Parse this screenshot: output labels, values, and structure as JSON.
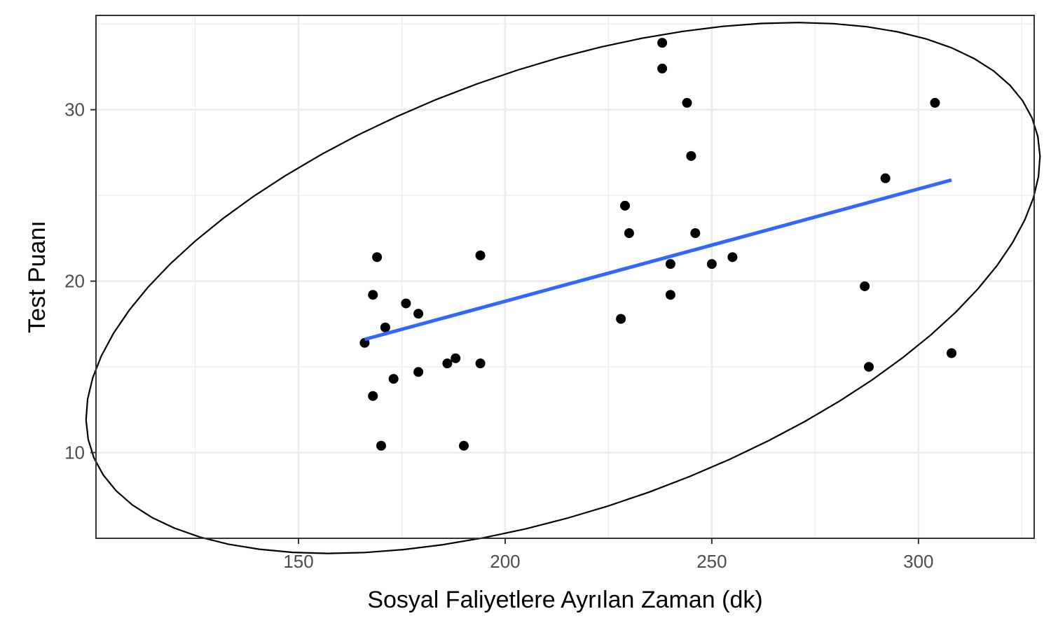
{
  "chart_data": {
    "type": "scatter",
    "title": "",
    "xlabel": "Sosyal Faliyetlere Ayrılan Zaman (dk)",
    "ylabel": "Test Puanı",
    "xlim": [
      101,
      328
    ],
    "ylim": [
      5,
      35.5
    ],
    "x_ticks": [
      150,
      200,
      250,
      300
    ],
    "x_tick_labels": [
      "150",
      "200",
      "250",
      "300"
    ],
    "x_minor_ticks": [
      125,
      175,
      225,
      275,
      325
    ],
    "y_ticks": [
      10,
      20,
      30
    ],
    "y_tick_labels": [
      "10",
      "20",
      "30"
    ],
    "y_minor_ticks": [
      15,
      25,
      35
    ],
    "grid": true,
    "points": [
      {
        "x": 166,
        "y": 16.4
      },
      {
        "x": 168,
        "y": 19.2
      },
      {
        "x": 168,
        "y": 13.3
      },
      {
        "x": 169,
        "y": 21.4
      },
      {
        "x": 170,
        "y": 10.4
      },
      {
        "x": 171,
        "y": 17.3
      },
      {
        "x": 173,
        "y": 14.3
      },
      {
        "x": 176,
        "y": 18.7
      },
      {
        "x": 179,
        "y": 18.1
      },
      {
        "x": 179,
        "y": 14.7
      },
      {
        "x": 186,
        "y": 15.2
      },
      {
        "x": 188,
        "y": 15.5
      },
      {
        "x": 190,
        "y": 10.4
      },
      {
        "x": 194,
        "y": 21.5
      },
      {
        "x": 194,
        "y": 15.2
      },
      {
        "x": 228,
        "y": 17.8
      },
      {
        "x": 229,
        "y": 24.4
      },
      {
        "x": 230,
        "y": 22.8
      },
      {
        "x": 238,
        "y": 33.9
      },
      {
        "x": 238,
        "y": 32.4
      },
      {
        "x": 240,
        "y": 21.0
      },
      {
        "x": 240,
        "y": 19.2
      },
      {
        "x": 244,
        "y": 30.4
      },
      {
        "x": 245,
        "y": 27.3
      },
      {
        "x": 246,
        "y": 22.8
      },
      {
        "x": 250,
        "y": 21.0
      },
      {
        "x": 255,
        "y": 21.4
      },
      {
        "x": 287,
        "y": 19.7
      },
      {
        "x": 288,
        "y": 15.0
      },
      {
        "x": 292,
        "y": 26.0
      },
      {
        "x": 304,
        "y": 30.4
      },
      {
        "x": 308,
        "y": 15.8
      }
    ],
    "regression_line": {
      "x": [
        166,
        308
      ],
      "y": [
        16.6,
        25.9
      ],
      "color": "#3366ff"
    },
    "ellipse": {
      "center": [
        214,
        19.6
      ],
      "color": "#000000"
    },
    "point_color": "#000000",
    "panel_border_color": "#333333",
    "grid_color": "#ebebeb"
  }
}
